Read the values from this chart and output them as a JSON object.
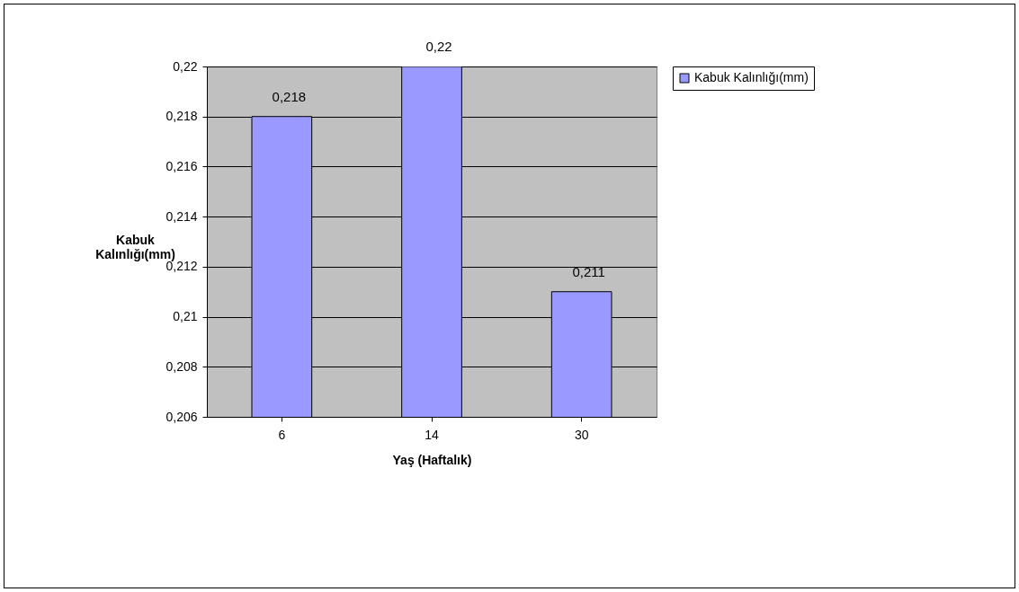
{
  "chart_data": {
    "type": "bar",
    "xlabel": "Yaş (Haftalık)",
    "ylabel": "Kabuk Kalınlığı(mm)",
    "categories": [
      "6",
      "14",
      "30"
    ],
    "series": [
      {
        "name": "Kabuk Kalınlığı(mm)",
        "color": "#9999ff",
        "values": [
          0.218,
          0.22,
          0.211
        ],
        "value_labels": [
          "0,218",
          "0,22",
          "0,211"
        ]
      }
    ],
    "ylim": [
      0.206,
      0.22
    ],
    "yticks": [
      {
        "value": 0.206,
        "label": "0,206"
      },
      {
        "value": 0.208,
        "label": "0,208"
      },
      {
        "value": 0.21,
        "label": "0,21"
      },
      {
        "value": 0.212,
        "label": "0,212"
      },
      {
        "value": 0.214,
        "label": "0,214"
      },
      {
        "value": 0.216,
        "label": "0,216"
      },
      {
        "value": 0.218,
        "label": "0,218"
      },
      {
        "value": 0.22,
        "label": "0,22"
      }
    ],
    "grid": "y",
    "legend": "right"
  }
}
